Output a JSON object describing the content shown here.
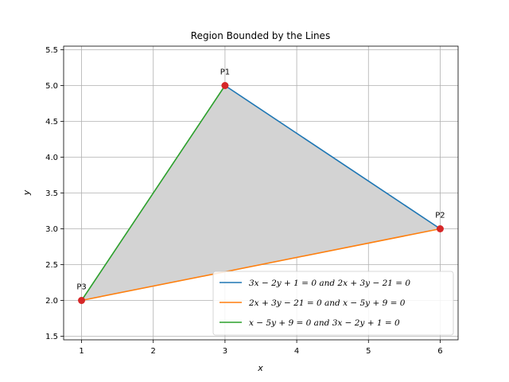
{
  "chart_data": {
    "type": "line",
    "title": "Region Bounded by the Lines",
    "xlabel": "x",
    "ylabel": "y",
    "xlim": [
      0.75,
      6.25
    ],
    "ylim": [
      1.45,
      5.55
    ],
    "xticks": [
      1,
      2,
      3,
      4,
      5,
      6
    ],
    "yticks": [
      1.5,
      2.0,
      2.5,
      3.0,
      3.5,
      4.0,
      4.5,
      5.0,
      5.5
    ],
    "xtick_labels": [
      "1",
      "2",
      "3",
      "4",
      "5",
      "6"
    ],
    "ytick_labels": [
      "1.5",
      "2.0",
      "2.5",
      "3.0",
      "3.5",
      "4.0",
      "4.5",
      "5.0",
      "5.5"
    ],
    "grid": true,
    "legend_position": "lower-right",
    "region_fill": "#d3d3d3",
    "points": [
      {
        "label": "P1",
        "x": 3,
        "y": 5
      },
      {
        "label": "P2",
        "x": 6,
        "y": 3
      },
      {
        "label": "P3",
        "x": 1,
        "y": 2
      }
    ],
    "point_color": "#d62728",
    "series": [
      {
        "name": "3x − 2y + 1 = 0 and 2x + 3y − 21 = 0",
        "color": "#1f77b4",
        "x": [
          3,
          6
        ],
        "y": [
          5,
          3
        ]
      },
      {
        "name": "2x + 3y − 21 = 0 and x − 5y + 9 = 0",
        "color": "#ff7f0e",
        "x": [
          6,
          1
        ],
        "y": [
          3,
          2
        ]
      },
      {
        "name": "x − 5y + 9 = 0 and 3x − 2y + 1 = 0",
        "color": "#2ca02c",
        "x": [
          1,
          3
        ],
        "y": [
          2,
          5
        ]
      }
    ]
  }
}
